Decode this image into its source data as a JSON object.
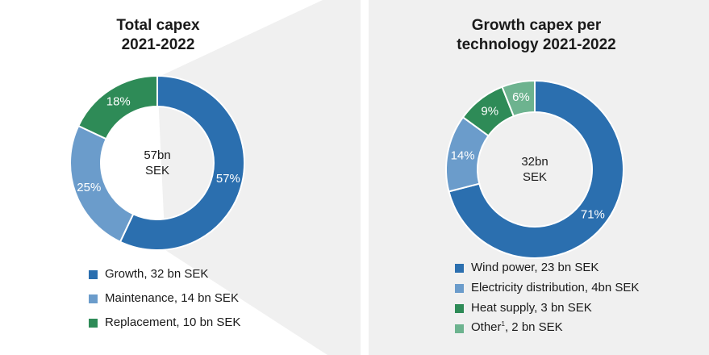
{
  "chart_data": [
    {
      "type": "donut",
      "title": "Total capex\n2021-2022",
      "title_lines": [
        "Total capex",
        "2021-2022"
      ],
      "center_lines": [
        "57bn",
        "SEK"
      ],
      "slices": [
        {
          "label": "Growth, 32 bn SEK",
          "value": 57,
          "display": "57%",
          "color": "#2b6faf"
        },
        {
          "label": "Maintenance, 14 bn SEK",
          "value": 25,
          "display": "25%",
          "color": "#6b9ccb"
        },
        {
          "label": "Replacement, 10 bn SEK",
          "value": 18,
          "display": "18%",
          "color": "#2e8b57"
        }
      ],
      "legend_position": "bottom"
    },
    {
      "type": "donut",
      "title": "Growth capex per\ntechnology 2021-2022",
      "title_lines": [
        "Growth capex per",
        "technology 2021-2022"
      ],
      "center_lines": [
        "32bn",
        "SEK"
      ],
      "slices": [
        {
          "label": "Wind power, 23 bn SEK",
          "value": 71,
          "display": "71%",
          "color": "#2b6faf"
        },
        {
          "label": "Electricity distribution, 4bn SEK",
          "value": 14,
          "display": "14%",
          "color": "#6b9ccb"
        },
        {
          "label": "Heat supply, 3 bn SEK",
          "value": 9,
          "display": "9%",
          "color": "#2e8b57"
        },
        {
          "label": "Other, 2 bn SEK",
          "label_pre": "Other",
          "label_sup": "1",
          "label_post": ", 2 bn SEK",
          "value": 6,
          "display": "6%",
          "color": "#6db38f"
        }
      ],
      "legend_position": "bottom"
    }
  ]
}
